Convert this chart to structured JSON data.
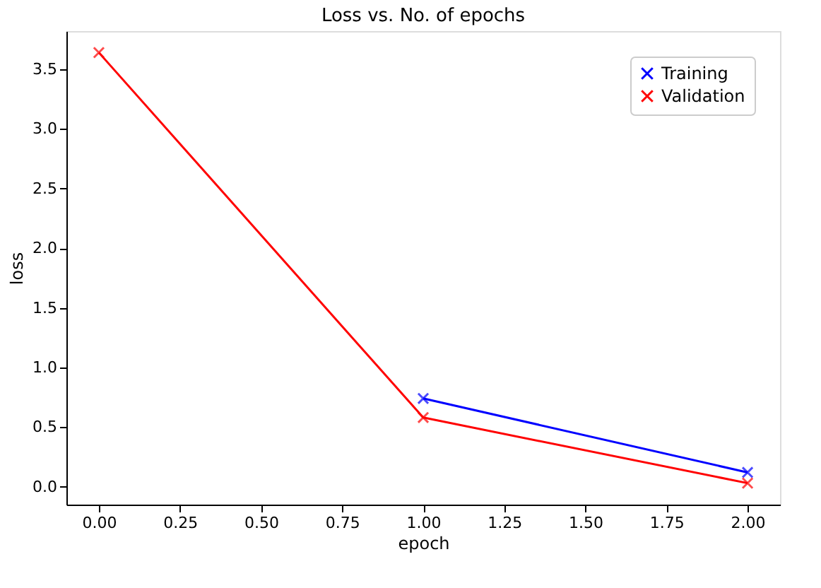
{
  "chart_data": {
    "type": "line",
    "title": "Loss vs. No. of epochs",
    "xlabel": "epoch",
    "ylabel": "loss",
    "x": [
      0,
      1,
      2
    ],
    "series": [
      {
        "name": "Training",
        "color": "#0000ff",
        "values": [
          null,
          0.74,
          0.12
        ]
      },
      {
        "name": "Validation",
        "color": "#ff0000",
        "values": [
          3.64,
          0.58,
          0.03
        ]
      }
    ],
    "xlim": [
      -0.1,
      2.1
    ],
    "xticks": [
      {
        "value": 0,
        "label": "0.00"
      },
      {
        "value": 0.25,
        "label": "0.25"
      },
      {
        "value": 0.5,
        "label": "0.50"
      },
      {
        "value": 0.75,
        "label": "0.75"
      },
      {
        "value": 1,
        "label": "1.00"
      },
      {
        "value": 1.25,
        "label": "1.25"
      },
      {
        "value": 1.5,
        "label": "1.50"
      },
      {
        "value": 1.75,
        "label": "1.75"
      },
      {
        "value": 2,
        "label": "2.00"
      }
    ],
    "ylim": [
      -0.15,
      3.82
    ],
    "yticks": [
      {
        "value": 0,
        "label": "0.0"
      },
      {
        "value": 0.5,
        "label": "0.5"
      },
      {
        "value": 1,
        "label": "1.0"
      },
      {
        "value": 1.5,
        "label": "1.5"
      },
      {
        "value": 2,
        "label": "2.0"
      },
      {
        "value": 2.5,
        "label": "2.5"
      },
      {
        "value": 3,
        "label": "3.0"
      },
      {
        "value": 3.5,
        "label": "3.5"
      }
    ],
    "legend": "top right",
    "marker": "cross",
    "line_style": "solid",
    "grid": false
  }
}
